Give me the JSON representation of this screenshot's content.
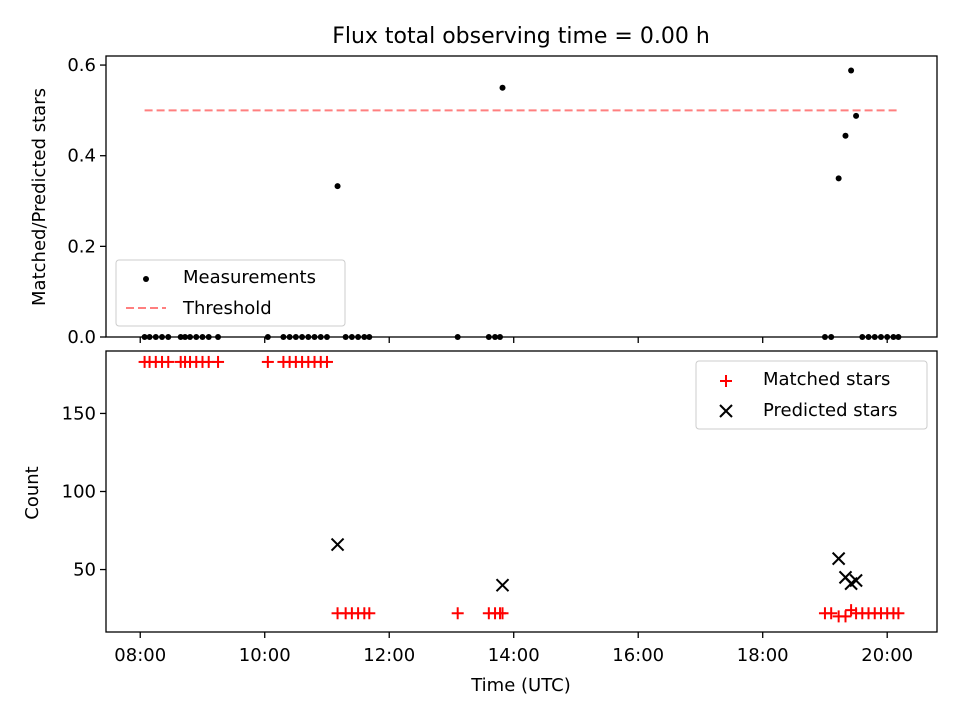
{
  "chart_data": [
    {
      "type": "scatter",
      "title": "Flux total observing time = 0.00 h",
      "xlabel": "",
      "ylabel": "Matched/Predicted stars",
      "xlim": [
        7.45,
        20.8
      ],
      "ylim": [
        0,
        0.62
      ],
      "yticks": [
        "0.0",
        "0.2",
        "0.4",
        "0.6"
      ],
      "legend_position": "lower-left",
      "series": [
        {
          "name": "Measurements",
          "color": "#000000",
          "marker": "dot",
          "points": [
            [
              8.07,
              0
            ],
            [
              8.15,
              0
            ],
            [
              8.25,
              0
            ],
            [
              8.35,
              0
            ],
            [
              8.45,
              0
            ],
            [
              8.65,
              0
            ],
            [
              8.72,
              0
            ],
            [
              8.8,
              0
            ],
            [
              8.9,
              0
            ],
            [
              9.0,
              0
            ],
            [
              9.1,
              0
            ],
            [
              9.25,
              0
            ],
            [
              10.05,
              0
            ],
            [
              10.3,
              0
            ],
            [
              10.4,
              0
            ],
            [
              10.5,
              0
            ],
            [
              10.6,
              0
            ],
            [
              10.7,
              0
            ],
            [
              10.8,
              0
            ],
            [
              10.9,
              0
            ],
            [
              11.0,
              0
            ],
            [
              11.17,
              0.333
            ],
            [
              11.3,
              0
            ],
            [
              11.4,
              0
            ],
            [
              11.5,
              0
            ],
            [
              11.6,
              0
            ],
            [
              11.68,
              0
            ],
            [
              13.1,
              0
            ],
            [
              13.6,
              0
            ],
            [
              13.7,
              0
            ],
            [
              13.78,
              0
            ],
            [
              13.82,
              0.55
            ],
            [
              19.0,
              0
            ],
            [
              19.1,
              0
            ],
            [
              19.22,
              0.35
            ],
            [
              19.33,
              0.444
            ],
            [
              19.42,
              0.588
            ],
            [
              19.5,
              0.488
            ],
            [
              19.6,
              0
            ],
            [
              19.7,
              0
            ],
            [
              19.8,
              0
            ],
            [
              19.9,
              0
            ],
            [
              20.0,
              0
            ],
            [
              20.1,
              0
            ],
            [
              20.18,
              0
            ]
          ]
        },
        {
          "name": "Threshold",
          "color": "#ff7f7f",
          "marker": "dashed-line",
          "points": [
            [
              8.07,
              0.5
            ],
            [
              20.18,
              0.5
            ]
          ]
        }
      ]
    },
    {
      "type": "scatter",
      "title": "",
      "xlabel": "Time (UTC)",
      "ylabel": "Count",
      "xlim": [
        7.45,
        20.8
      ],
      "ylim": [
        10,
        190
      ],
      "yticks": [
        "50",
        "100",
        "150"
      ],
      "xticks": [
        "08:00",
        "10:00",
        "12:00",
        "14:00",
        "16:00",
        "18:00",
        "20:00"
      ],
      "legend_position": "top-right",
      "series": [
        {
          "name": "Matched stars",
          "color": "#ff0000",
          "marker": "plus",
          "points": [
            [
              8.07,
              183
            ],
            [
              8.15,
              183
            ],
            [
              8.25,
              183
            ],
            [
              8.35,
              183
            ],
            [
              8.45,
              183
            ],
            [
              8.65,
              183
            ],
            [
              8.72,
              183
            ],
            [
              8.8,
              183
            ],
            [
              8.9,
              183
            ],
            [
              9.0,
              183
            ],
            [
              9.1,
              183
            ],
            [
              9.25,
              183
            ],
            [
              10.05,
              183
            ],
            [
              10.3,
              183
            ],
            [
              10.4,
              183
            ],
            [
              10.5,
              183
            ],
            [
              10.6,
              183
            ],
            [
              10.7,
              183
            ],
            [
              10.8,
              183
            ],
            [
              10.9,
              183
            ],
            [
              11.0,
              183
            ],
            [
              11.17,
              22
            ],
            [
              11.3,
              22
            ],
            [
              11.4,
              22
            ],
            [
              11.5,
              22
            ],
            [
              11.6,
              22
            ],
            [
              11.68,
              22
            ],
            [
              13.1,
              22
            ],
            [
              13.6,
              22
            ],
            [
              13.7,
              22
            ],
            [
              13.78,
              22
            ],
            [
              13.82,
              22
            ],
            [
              19.0,
              22
            ],
            [
              19.1,
              22
            ],
            [
              19.22,
              20
            ],
            [
              19.33,
              20
            ],
            [
              19.42,
              24
            ],
            [
              19.5,
              22
            ],
            [
              19.6,
              22
            ],
            [
              19.7,
              22
            ],
            [
              19.8,
              22
            ],
            [
              19.9,
              22
            ],
            [
              20.0,
              22
            ],
            [
              20.1,
              22
            ],
            [
              20.18,
              22
            ]
          ]
        },
        {
          "name": "Predicted stars",
          "color": "#000000",
          "marker": "x",
          "points": [
            [
              11.17,
              66
            ],
            [
              13.82,
              40
            ],
            [
              19.22,
              57
            ],
            [
              19.33,
              45
            ],
            [
              19.42,
              41
            ],
            [
              19.5,
              43
            ]
          ]
        }
      ]
    }
  ]
}
